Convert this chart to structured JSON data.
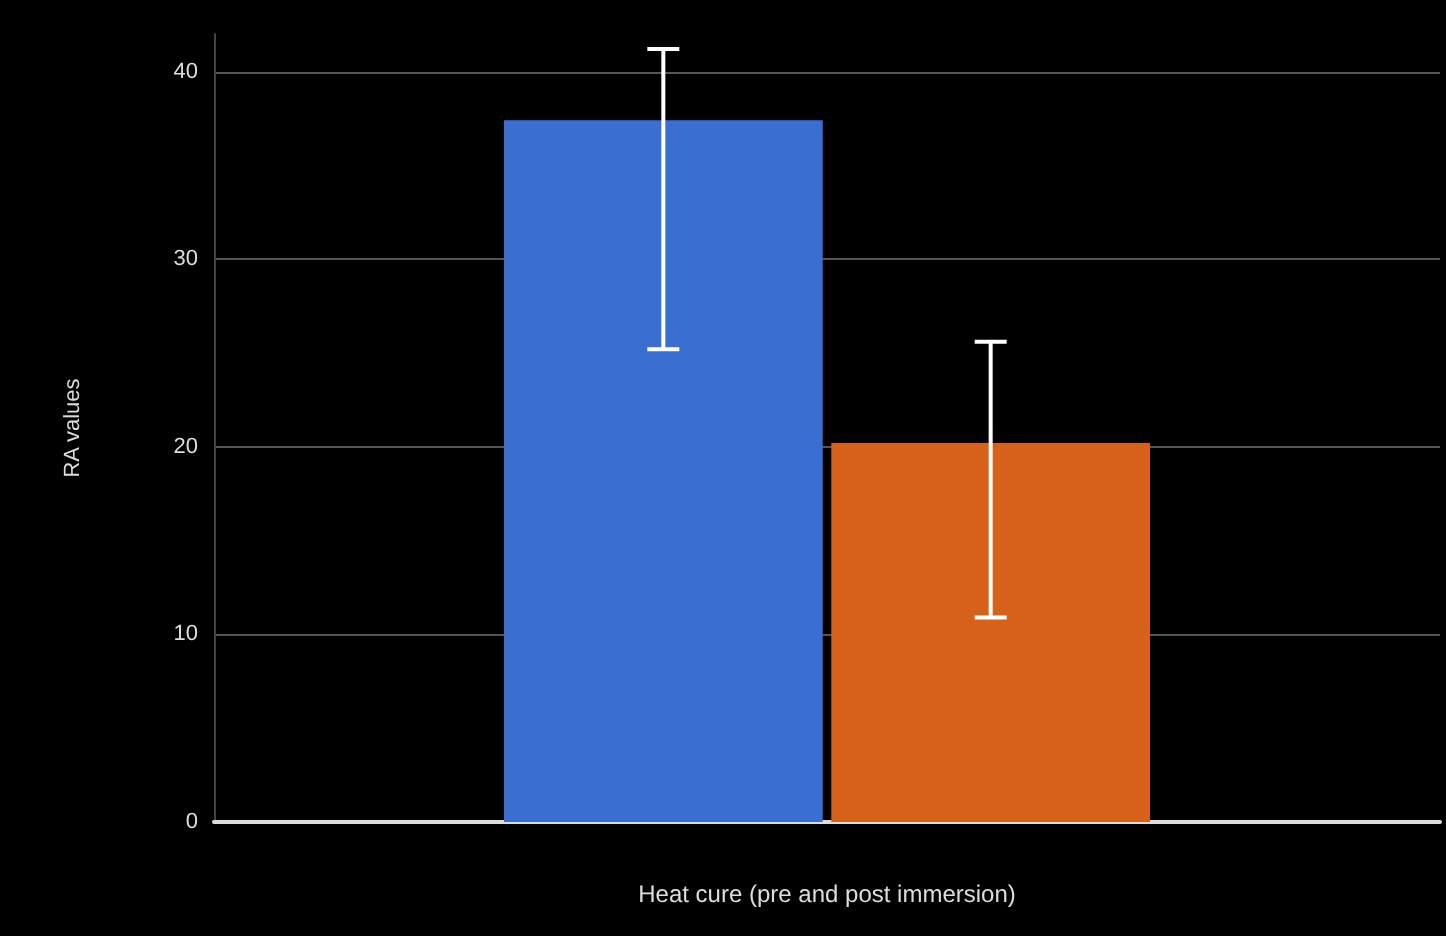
{
  "chart_data": {
    "type": "bar",
    "xlabel": "Heat cure (pre and post immersion)",
    "ylabel": "RA values",
    "categories": [
      null
    ],
    "series": [
      {
        "color": "#3a6fd1",
        "values": [
          37.4
        ],
        "errors": [
          [
            25.2,
            41.2
          ]
        ]
      },
      {
        "color": "#d6611b",
        "values": [
          20.2
        ],
        "errors": [
          [
            10.9,
            25.6
          ]
        ]
      }
    ],
    "ylim": [
      0,
      42
    ],
    "yticks": [
      0,
      10,
      20,
      30,
      40
    ],
    "grid": "y",
    "tick_labels": "y"
  }
}
